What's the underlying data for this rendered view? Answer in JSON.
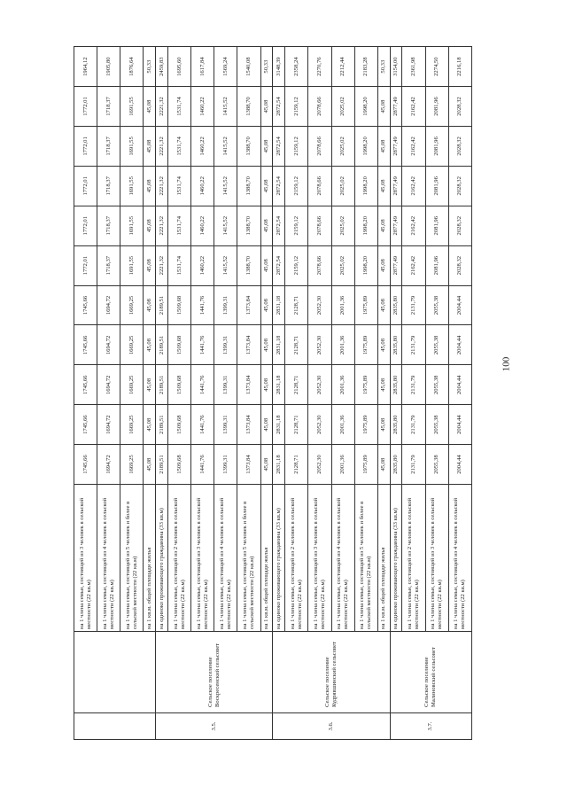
{
  "page_number": "100",
  "sections": [
    {
      "number": "",
      "name": "",
      "rows": [
        {
          "desc": "на 1 члена семьи, состоящей из 3 человек в сельской местности (22 кв.м)",
          "a": "1745,66",
          "b": "1772,01",
          "c": "1964,12"
        },
        {
          "desc": "на 1 члена семьи, состоящей из 4 человек в сельской местности (22 кв.м)",
          "a": "1694,72",
          "b": "1718,37",
          "c": "1905,80"
        },
        {
          "desc": "на 1 члена семьи, состоящей из 5 человек и более в сельской местности (22 кв.м)",
          "a": "1669,25",
          "b": "1691,55",
          "c": "1876,64"
        },
        {
          "desc": "на 1 кв.м. общей площади жилья",
          "a": "45,08",
          "b": "45,08",
          "c": "50,33"
        }
      ]
    },
    {
      "number": "3.5.",
      "name": "Сельское поселение Воскресенский сельсовет",
      "rows": [
        {
          "desc": "на одиноко проживающего гражданина (33 кв.м)",
          "a": "2189,51",
          "b": "2221,32",
          "c": "2459,83"
        },
        {
          "desc": "на 1 члена семьи, состоящей из 2 человек в сельской местности (22 кв.м)",
          "a": "1509,68",
          "b": "1531,74",
          "c": "1695,60"
        },
        {
          "desc": "на 1 члена семьи, состоящей из 3 человек в сельской местности (22 кв.м)",
          "a": "1441,76",
          "b": "1460,22",
          "c": "1617,84"
        },
        {
          "desc": "на 1 члена семьи, состоящей из 4 человек в сельской местности (22 кв.м)",
          "a": "1399,31",
          "b": "1415,52",
          "c": "1569,24"
        },
        {
          "desc": "на 1 члена семьи, состоящей из 5 человек и более в сельской местности (22 кв.м)",
          "a": "1373,84",
          "b": "1388,70",
          "c": "1540,08"
        },
        {
          "desc": "на 1 кв.м. общей площади жилья",
          "a": "45,08",
          "b": "45,08",
          "c": "50,33"
        }
      ]
    },
    {
      "number": "3.6.",
      "name": "Сельское поселение Кудрявшинский сельсовет",
      "rows": [
        {
          "desc": "на одиноко проживающего гражданина (33 кв.м)",
          "a": "2831,18",
          "b": "2872,54",
          "c": "3148,39"
        },
        {
          "desc": "на 1 члена семьи, состоящей из 2 человек в сельской местности (22 кв.м)",
          "a": "2128,71",
          "b": "2159,12",
          "c": "2358,24"
        },
        {
          "desc": "на 1 члена семьи, состоящей из 3 человек в сельской местности (22 кв.м)",
          "a": "2052,30",
          "b": "2078,66",
          "c": "2270,76"
        },
        {
          "desc": "на 1 члена семьи, состоящей из 4 человек в сельской местности (22 кв.м)",
          "a": "2001,36",
          "b": "2025,02",
          "c": "2212,44"
        },
        {
          "desc": "на 1 члена семьи, состоящей из 5 человек и более в сельской местности (22 кв.м)",
          "a": "1975,89",
          "b": "1998,20",
          "c": "2183,28"
        },
        {
          "desc": "на 1 кв.м. общей площади жилья",
          "a": "45,08",
          "b": "45,08",
          "c": "50,33"
        }
      ]
    },
    {
      "number": "3.7.",
      "name": "Сельское поселение Малиновский сельсовет",
      "rows": [
        {
          "desc": "на одиноко проживающего гражданина (33 кв.м)",
          "a": "2835,80",
          "b": "2877,49",
          "c": "3154,00"
        },
        {
          "desc": "на 1 члена семьи, состоящей из 2 человек в сельской местности (22 кв.м)",
          "a": "2131,79",
          "b": "2162,42",
          "c": "2361,98"
        },
        {
          "desc": "на 1 члена семьи, состоящей из 3 человек в сельской местности (22 кв.м)",
          "a": "2055,38",
          "b": "2081,96",
          "c": "2274,50"
        },
        {
          "desc": "на 1 члена семьи, состоящей из 4 человек в сельской местности (22 кв.м)",
          "a": "2004,44",
          "b": "2028,32",
          "c": "2216,18"
        }
      ]
    }
  ]
}
